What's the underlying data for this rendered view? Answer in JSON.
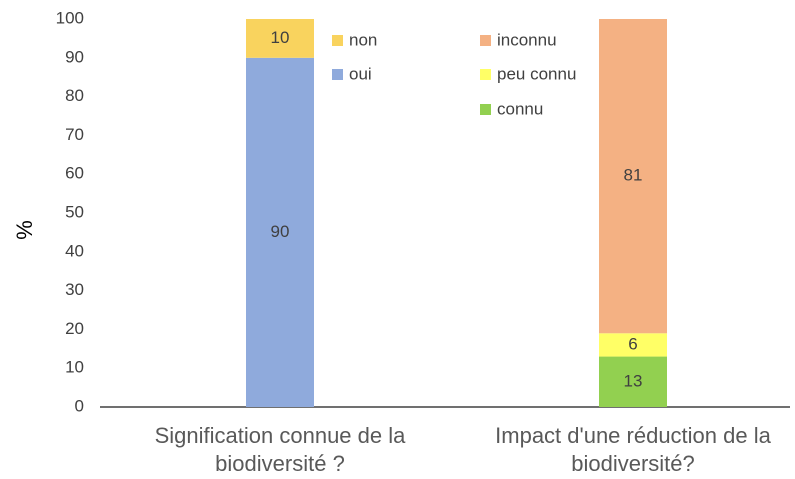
{
  "chart_data": {
    "type": "stacked_bar",
    "categories": [
      "Signification connue de la biodiversité ?",
      "Impact d'une réduction de la biodiversité?"
    ],
    "ylabel": "%",
    "ylim": [
      0,
      100
    ],
    "yticks": [
      0,
      10,
      20,
      30,
      40,
      50,
      60,
      70,
      80,
      90,
      100
    ],
    "series": [
      {
        "name": "oui",
        "color": "#8faadc",
        "values": [
          90,
          null
        ]
      },
      {
        "name": "non",
        "color": "#f9d35e",
        "values": [
          10,
          null
        ]
      },
      {
        "name": "connu",
        "color": "#92d050",
        "values": [
          null,
          13
        ]
      },
      {
        "name": "peu connu",
        "color": "#ffff66",
        "values": [
          null,
          6
        ]
      },
      {
        "name": "inconnu",
        "color": "#f4b183",
        "values": [
          null,
          81
        ]
      }
    ]
  }
}
